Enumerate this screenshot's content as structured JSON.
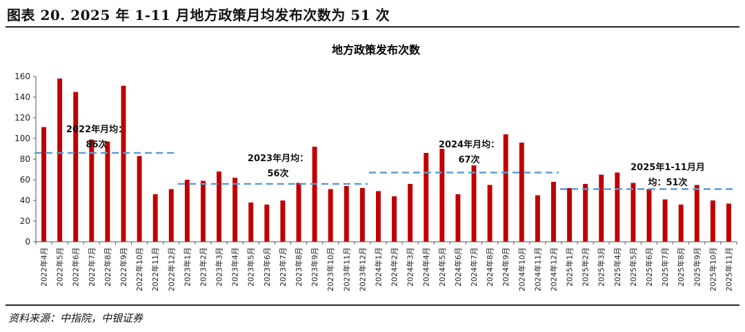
{
  "figure_title": "图表 20. 2025 年 1-11 月地方政策月均发布次数为 51 次",
  "source": "资料来源：中指院，中银证券",
  "colors": {
    "bar": "#C00000",
    "avg_line": "#5B9BD5"
  },
  "chart_data": {
    "type": "bar",
    "title": "地方政策发布次数",
    "ylim": [
      0,
      160
    ],
    "yticks": [
      0,
      20,
      40,
      60,
      80,
      100,
      120,
      140,
      160
    ],
    "categories": [
      "2022年4月",
      "2022年5月",
      "2022年6月",
      "2022年7月",
      "2022年8月",
      "2022年9月",
      "2022年10月",
      "2022年11月",
      "2022年12月",
      "2023年1月",
      "2023年2月",
      "2023年3月",
      "2023年4月",
      "2023年5月",
      "2023年6月",
      "2023年7月",
      "2023年8月",
      "2023年9月",
      "2023年10月",
      "2023年11月",
      "2023年12月",
      "2024年1月",
      "2024年2月",
      "2024年3月",
      "2024年4月",
      "2024年5月",
      "2024年6月",
      "2024年7月",
      "2024年8月",
      "2024年9月",
      "2024年10月",
      "2024年11月",
      "2024年12月",
      "2025年1月",
      "2025年2月",
      "2025年3月",
      "2025年4月",
      "2025年5月",
      "2025年6月",
      "2025年7月",
      "2025年8月",
      "2025年9月",
      "2025年10月",
      "2025年11月"
    ],
    "values": [
      111,
      158,
      145,
      99,
      97,
      151,
      83,
      46,
      51,
      60,
      59,
      68,
      62,
      38,
      36,
      40,
      57,
      92,
      51,
      54,
      52,
      49,
      44,
      56,
      86,
      90,
      46,
      74,
      55,
      104,
      96,
      45,
      58,
      52,
      56,
      65,
      67,
      57,
      51,
      41,
      36,
      55,
      40,
      37
    ],
    "averages": [
      {
        "year": "2022",
        "value": 86,
        "from": 0,
        "to": 8,
        "label_lines": [
          "2022年月均：",
          "86次"
        ]
      },
      {
        "year": "2023",
        "value": 56,
        "from": 9,
        "to": 20,
        "label_lines": [
          "2023年月均：",
          "56次"
        ]
      },
      {
        "year": "2024",
        "value": 67,
        "from": 21,
        "to": 32,
        "label_lines": [
          "2024年月均：",
          "67次"
        ]
      },
      {
        "year": "2025",
        "value": 51,
        "from": 33,
        "to": 43,
        "label_lines": [
          "2025年1-11月月",
          "均：51次"
        ]
      }
    ]
  }
}
